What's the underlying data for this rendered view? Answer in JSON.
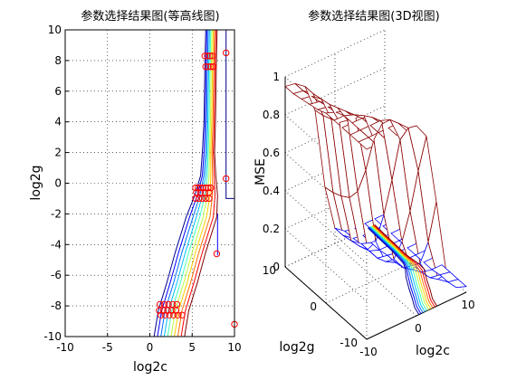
{
  "chart_data": [
    {
      "type": "contour",
      "title": "参数选择结果图(等高线图)",
      "xlabel": "log2c",
      "ylabel": "log2g",
      "xlim": [
        -10,
        10
      ],
      "ylim": [
        -10,
        10
      ],
      "xticks": [
        "-10",
        "-5",
        "0",
        "5",
        "10"
      ],
      "yticks": [
        "-10",
        "-8",
        "-6",
        "-4",
        "-2",
        "0",
        "2",
        "4",
        "6",
        "8",
        "10"
      ],
      "grid": true,
      "contour_colors": [
        "#00008f",
        "#0000ff",
        "#0070ff",
        "#00c0ff",
        "#40ffbf",
        "#bfff40",
        "#ffd000",
        "#ff7000",
        "#ff0000",
        "#800000"
      ],
      "contours": [
        [
          [
            0.5,
            -10
          ],
          [
            1.0,
            -8.3
          ],
          [
            2.0,
            -6.5
          ],
          [
            3.0,
            -4.5
          ],
          [
            4.3,
            -2.2
          ],
          [
            5.3,
            -0.8
          ],
          [
            6.0,
            0.5
          ],
          [
            6.2,
            2.0
          ],
          [
            6.4,
            4.0
          ],
          [
            6.5,
            7.5
          ],
          [
            6.6,
            10
          ]
        ],
        [
          [
            0.9,
            -10
          ],
          [
            1.4,
            -8.3
          ],
          [
            2.4,
            -6.5
          ],
          [
            3.4,
            -4.5
          ],
          [
            4.7,
            -2.2
          ],
          [
            5.6,
            -0.8
          ],
          [
            6.2,
            0.5
          ],
          [
            6.4,
            2.0
          ],
          [
            6.55,
            4.0
          ],
          [
            6.65,
            7.5
          ],
          [
            6.75,
            10
          ]
        ],
        [
          [
            1.3,
            -10
          ],
          [
            1.8,
            -8.3
          ],
          [
            2.8,
            -6.5
          ],
          [
            3.8,
            -4.5
          ],
          [
            5.1,
            -2.2
          ],
          [
            5.9,
            -0.8
          ],
          [
            6.4,
            0.5
          ],
          [
            6.6,
            2.0
          ],
          [
            6.7,
            4.0
          ],
          [
            6.8,
            7.5
          ],
          [
            6.9,
            10
          ]
        ],
        [
          [
            1.7,
            -10
          ],
          [
            2.2,
            -8.3
          ],
          [
            3.2,
            -6.5
          ],
          [
            4.2,
            -4.5
          ],
          [
            5.5,
            -2.2
          ],
          [
            6.2,
            -0.8
          ],
          [
            6.6,
            0.5
          ],
          [
            6.75,
            2.0
          ],
          [
            6.85,
            4.0
          ],
          [
            6.95,
            7.5
          ],
          [
            7.05,
            10
          ]
        ],
        [
          [
            2.1,
            -10
          ],
          [
            2.6,
            -8.3
          ],
          [
            3.6,
            -6.5
          ],
          [
            4.6,
            -4.5
          ],
          [
            5.9,
            -2.2
          ],
          [
            6.5,
            -0.8
          ],
          [
            6.8,
            0.5
          ],
          [
            6.9,
            2.0
          ],
          [
            7.0,
            4.0
          ],
          [
            7.1,
            7.5
          ],
          [
            7.2,
            10
          ]
        ],
        [
          [
            2.5,
            -10
          ],
          [
            3.0,
            -8.3
          ],
          [
            4.0,
            -6.5
          ],
          [
            5.0,
            -4.5
          ],
          [
            6.3,
            -2.2
          ],
          [
            6.8,
            -0.8
          ],
          [
            7.0,
            0.5
          ],
          [
            7.05,
            2.0
          ],
          [
            7.15,
            4.0
          ],
          [
            7.25,
            7.5
          ],
          [
            7.35,
            10
          ]
        ],
        [
          [
            2.9,
            -10
          ],
          [
            3.4,
            -8.3
          ],
          [
            4.4,
            -6.5
          ],
          [
            5.4,
            -4.5
          ],
          [
            6.7,
            -2.2
          ],
          [
            7.1,
            -0.8
          ],
          [
            7.2,
            0.5
          ],
          [
            7.2,
            2.0
          ],
          [
            7.3,
            4.0
          ],
          [
            7.4,
            7.5
          ],
          [
            7.5,
            10
          ]
        ],
        [
          [
            3.3,
            -10
          ],
          [
            3.8,
            -8.3
          ],
          [
            4.8,
            -6.5
          ],
          [
            5.8,
            -4.5
          ],
          [
            7.1,
            -2.2
          ],
          [
            7.4,
            -0.8
          ],
          [
            7.4,
            0.5
          ],
          [
            7.35,
            2.0
          ],
          [
            7.45,
            4.0
          ],
          [
            7.55,
            7.5
          ],
          [
            7.65,
            10
          ]
        ],
        [
          [
            3.7,
            -10
          ],
          [
            4.2,
            -8.3
          ],
          [
            5.2,
            -6.5
          ],
          [
            6.2,
            -4.5
          ],
          [
            7.5,
            -2.2
          ],
          [
            7.7,
            -0.8
          ],
          [
            7.6,
            0.5
          ],
          [
            7.5,
            2.0
          ],
          [
            7.6,
            4.0
          ],
          [
            7.7,
            7.5
          ],
          [
            7.8,
            10
          ]
        ],
        [
          [
            4.1,
            -10
          ],
          [
            4.6,
            -8.3
          ],
          [
            5.6,
            -6.5
          ],
          [
            6.6,
            -4.5
          ],
          [
            7.9,
            -2.2
          ],
          [
            8.0,
            -0.8
          ],
          [
            7.8,
            0.5
          ],
          [
            7.65,
            2.0
          ],
          [
            7.75,
            4.0
          ],
          [
            7.85,
            7.5
          ],
          [
            7.95,
            10
          ]
        ]
      ],
      "extra_lines": [
        {
          "color": "#0000ff",
          "points": [
            [
              8,
              -2
            ],
            [
              8,
              -4.7
            ]
          ]
        },
        {
          "color": "#00008f",
          "points": [
            [
              9,
              10
            ],
            [
              9,
              -1
            ],
            [
              10,
              -1
            ]
          ]
        }
      ],
      "markers": [
        [
          6.5,
          8.3
        ],
        [
          6.8,
          8.3
        ],
        [
          7.1,
          8.3
        ],
        [
          7.4,
          8.3
        ],
        [
          6.6,
          7.6
        ],
        [
          6.9,
          7.6
        ],
        [
          7.2,
          7.6
        ],
        [
          7.5,
          7.6
        ],
        [
          9.0,
          8.5
        ],
        [
          9.0,
          0.3
        ],
        [
          5.4,
          -0.3
        ],
        [
          5.7,
          -0.3
        ],
        [
          6.0,
          -0.3
        ],
        [
          6.3,
          -0.3
        ],
        [
          6.6,
          -0.3
        ],
        [
          6.9,
          -0.3
        ],
        [
          7.2,
          -0.3
        ],
        [
          5.5,
          -0.6
        ],
        [
          6.0,
          -0.6
        ],
        [
          6.5,
          -0.6
        ],
        [
          7.0,
          -0.6
        ],
        [
          5.4,
          -1.0
        ],
        [
          5.8,
          -1.0
        ],
        [
          6.2,
          -1.0
        ],
        [
          6.6,
          -1.0
        ],
        [
          7.0,
          -1.0
        ],
        [
          7.9,
          -4.6
        ],
        [
          10.0,
          -9.2
        ],
        [
          1.2,
          -7.9
        ],
        [
          1.7,
          -7.9
        ],
        [
          2.2,
          -7.9
        ],
        [
          2.7,
          -7.9
        ],
        [
          3.2,
          -7.9
        ],
        [
          1.1,
          -8.3
        ],
        [
          1.6,
          -8.3
        ],
        [
          2.1,
          -8.3
        ],
        [
          2.6,
          -8.3
        ],
        [
          3.1,
          -8.3
        ],
        [
          1.3,
          -8.6
        ],
        [
          1.8,
          -8.6
        ],
        [
          2.3,
          -8.6
        ],
        [
          2.8,
          -8.6
        ],
        [
          3.3,
          -8.6
        ],
        [
          3.8,
          -8.6
        ]
      ]
    },
    {
      "type": "surface3d",
      "title": "参数选择结果图(3D视图)",
      "xlabel": "log2c",
      "ylabel": "log2g",
      "zlabel": "MSE",
      "xlim": [
        -10,
        10
      ],
      "ylim": [
        -10,
        10
      ],
      "zlim": [
        0,
        1
      ],
      "xticks": [
        "-10",
        "0",
        "10"
      ],
      "yticks": [
        "-10",
        "0",
        "10"
      ],
      "zticks": [
        "0",
        "0.2",
        "0.4",
        "0.6",
        "0.8",
        "1"
      ],
      "grid": true,
      "surface_color": "#8b0000",
      "low_color": "#0000ff",
      "contour_colors": [
        "#00008f",
        "#0000ff",
        "#0070ff",
        "#00c0ff",
        "#40ffbf",
        "#bfff40",
        "#ffd000",
        "#ff7000",
        "#ff0000",
        "#800000"
      ],
      "surface": {
        "x": [
          -10,
          -8,
          -6,
          -4,
          -2,
          0,
          2,
          4,
          6,
          8,
          10
        ],
        "y": [
          -10,
          -8,
          -6,
          -4,
          -2,
          0,
          2,
          4,
          6,
          8,
          10
        ],
        "z": [
          [
            1.0,
            1.0,
            1.0,
            1.0,
            1.0,
            1.0,
            0.92,
            0.55,
            0.15,
            0.05,
            0.03
          ],
          [
            1.0,
            1.0,
            1.0,
            1.0,
            1.0,
            0.95,
            0.7,
            0.3,
            0.08,
            0.04,
            0.03
          ],
          [
            1.0,
            1.0,
            1.0,
            1.0,
            0.98,
            0.85,
            0.45,
            0.15,
            0.05,
            0.04,
            0.03
          ],
          [
            1.0,
            1.0,
            1.0,
            0.98,
            0.92,
            0.6,
            0.25,
            0.08,
            0.04,
            0.03,
            0.03
          ],
          [
            1.0,
            1.0,
            0.98,
            0.95,
            0.8,
            0.38,
            0.12,
            0.05,
            0.04,
            0.03,
            0.03
          ],
          [
            1.0,
            0.98,
            0.96,
            0.9,
            0.6,
            0.2,
            0.07,
            0.04,
            0.03,
            0.03,
            0.03
          ],
          [
            0.98,
            0.97,
            0.94,
            0.85,
            0.45,
            0.12,
            0.05,
            0.04,
            0.03,
            0.03,
            0.03
          ],
          [
            0.97,
            0.96,
            0.92,
            0.8,
            0.38,
            0.1,
            0.05,
            0.03,
            0.03,
            0.03,
            0.03
          ],
          [
            0.96,
            0.95,
            0.91,
            0.78,
            0.35,
            0.09,
            0.05,
            0.03,
            0.03,
            0.03,
            0.03
          ],
          [
            0.95,
            0.94,
            0.9,
            0.76,
            0.33,
            0.08,
            0.04,
            0.03,
            0.03,
            0.03,
            0.03
          ],
          [
            0.95,
            0.94,
            0.9,
            0.75,
            0.32,
            0.08,
            0.04,
            0.03,
            0.03,
            0.03,
            0.03
          ]
        ]
      }
    }
  ]
}
